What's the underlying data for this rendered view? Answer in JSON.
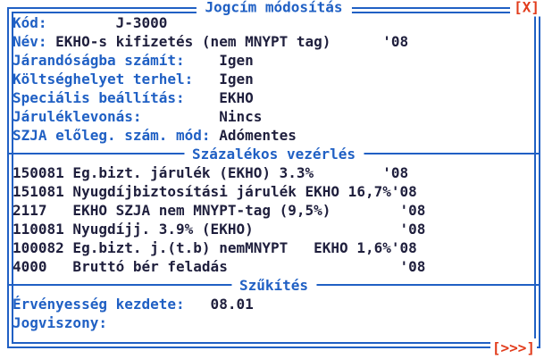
{
  "window": {
    "title": "Jogcím módosítás",
    "close_label": "[X]",
    "more_label": "[>>>]"
  },
  "colors": {
    "accent": "#2060c4",
    "ink": "#1f1f3d",
    "alert": "#e23c1c",
    "background": "#ffffff"
  },
  "fields": [
    {
      "name": "kod",
      "label": "Kód:",
      "value": "        J-3000"
    },
    {
      "name": "nev",
      "label": "Név:",
      "value": " EKHO-s kifizetés (nem MNYPT tag)      '08"
    },
    {
      "name": "jarandosagba",
      "label": "Járandóságba számít:",
      "value": "    Igen"
    },
    {
      "name": "koltseghelyet",
      "label": "Költséghelyet terhel:",
      "value": "   Igen"
    },
    {
      "name": "specialis",
      "label": "Speciális beállítás:",
      "value": "    EKHO"
    },
    {
      "name": "jaruleklevonas",
      "label": "Járuléklevonás:",
      "value": "         Nincs"
    },
    {
      "name": "szja-mod",
      "label": "SZJA előleg. szám. mód:",
      "value": " Adómentes"
    }
  ],
  "percent_section": {
    "title": "Százalékos vezérlés",
    "rows": [
      "150081 Eg.bizt. járulék (EKHO) 3.3%        '08",
      "151081 Nyugdíjbiztosítási járulék EKHO 16,7%'08",
      "2117   EKHO SZJA nem MNYPT-tag (9,5%)        '08",
      "110081 Nyugdíjj. 3.9% (EKHO)                 '08",
      "100082 Eg.bizt. j.(t.b) nemMNYPT   EKHO 1,6%'08",
      "4000   Bruttó bér feladás                    '08"
    ]
  },
  "filter_section": {
    "title": "Szűkítés",
    "fields": [
      {
        "name": "ervenyesseg",
        "label": "Érvényesség kezdete:",
        "value": "   08.01"
      },
      {
        "name": "jogviszony",
        "label": "Jogviszony:",
        "value": ""
      }
    ]
  }
}
